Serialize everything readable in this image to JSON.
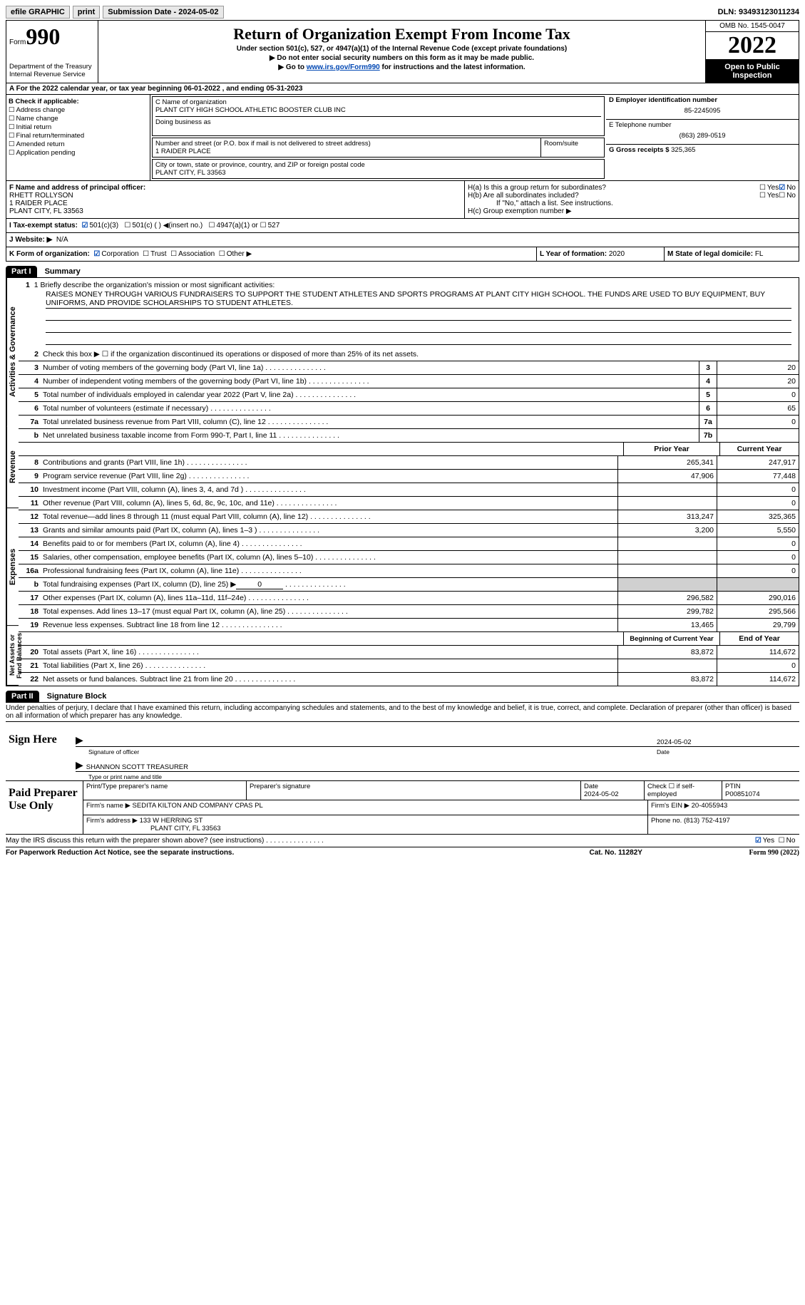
{
  "topbar": {
    "efile": "efile GRAPHIC",
    "print_btn": "print",
    "submission_label": "Submission Date - 2024-05-02",
    "dln_label": "DLN: 93493123011234"
  },
  "header": {
    "form_prefix": "Form",
    "form_number": "990",
    "dept": "Department of the Treasury\nInternal Revenue Service",
    "title": "Return of Organization Exempt From Income Tax",
    "sub1": "Under section 501(c), 527, or 4947(a)(1) of the Internal Revenue Code (except private foundations)",
    "sub2": "▶ Do not enter social security numbers on this form as it may be made public.",
    "sub3_pre": "▶ Go to ",
    "sub3_link": "www.irs.gov/Form990",
    "sub3_post": " for instructions and the latest information.",
    "omb": "OMB No. 1545-0047",
    "year": "2022",
    "open": "Open to Public Inspection"
  },
  "section_a": {
    "text": "A For the 2022 calendar year, or tax year beginning 06-01-2022   , and ending 05-31-2023"
  },
  "col_b": {
    "label": "B Check if applicable:",
    "items": [
      "Address change",
      "Name change",
      "Initial return",
      "Final return/terminated",
      "Amended return",
      "Application pending"
    ]
  },
  "col_c": {
    "name_label": "C Name of organization",
    "org_name": "PLANT CITY HIGH SCHOOL ATHLETIC BOOSTER CLUB INC",
    "dba_label": "Doing business as",
    "addr_label": "Number and street (or P.O. box if mail is not delivered to street address)",
    "addr": "1 RAIDER PLACE",
    "room_label": "Room/suite",
    "city_label": "City or town, state or province, country, and ZIP or foreign postal code",
    "city": "PLANT CITY, FL  33563"
  },
  "col_d": {
    "ein_label": "D Employer identification number",
    "ein": "85-2245095",
    "phone_label": "E Telephone number",
    "phone": "(863) 289-0519",
    "gross_label": "G Gross receipts $",
    "gross": "325,365"
  },
  "section_f": {
    "label": "F  Name and address of principal officer:",
    "name": "RHETT ROLLYSON",
    "addr1": "1 RAIDER PLACE",
    "addr2": "PLANT CITY, FL  33563"
  },
  "section_h": {
    "ha": "H(a)  Is this a group return for subordinates?",
    "hb": "H(b)  Are all subordinates included?",
    "hb_note": "If \"No,\" attach a list. See instructions.",
    "hc": "H(c)  Group exemption number ▶",
    "yes": "Yes",
    "no": "No"
  },
  "section_i": {
    "label": "I   Tax-exempt status:",
    "opts": [
      "501(c)(3)",
      "501(c) (  ) ◀(insert no.)",
      "4947(a)(1) or",
      "527"
    ]
  },
  "section_j": {
    "label": "J   Website: ▶",
    "val": "N/A"
  },
  "section_k": {
    "label": "K Form of organization:",
    "opts": [
      "Corporation",
      "Trust",
      "Association",
      "Other ▶"
    ]
  },
  "section_l": {
    "label": "L Year of formation:",
    "val": "2020"
  },
  "section_m": {
    "label": "M State of legal domicile:",
    "val": "FL"
  },
  "part1": {
    "header": "Part I",
    "title": "Summary",
    "side_labels": [
      "Activities & Governance",
      "Revenue",
      "Expenses",
      "Net Assets or Fund Balances"
    ],
    "line1_label": "1   Briefly describe the organization's mission or most significant activities:",
    "mission": "RAISES MONEY THROUGH VARIOUS FUNDRAISERS TO SUPPORT THE STUDENT ATHLETES AND SPORTS PROGRAMS AT PLANT CITY HIGH SCHOOL. THE FUNDS ARE USED TO BUY EQUIPMENT, BUY UNIFORMS, AND PROVIDE SCHOLARSHIPS TO STUDENT ATHLETES.",
    "line2": "Check this box ▶ ☐  if the organization discontinued its operations or disposed of more than 25% of its net assets.",
    "lines_gov": [
      {
        "n": "3",
        "t": "Number of voting members of the governing body (Part VI, line 1a)",
        "box": "3",
        "v": "20"
      },
      {
        "n": "4",
        "t": "Number of independent voting members of the governing body (Part VI, line 1b)",
        "box": "4",
        "v": "20"
      },
      {
        "n": "5",
        "t": "Total number of individuals employed in calendar year 2022 (Part V, line 2a)",
        "box": "5",
        "v": "0"
      },
      {
        "n": "6",
        "t": "Total number of volunteers (estimate if necessary)",
        "box": "6",
        "v": "65"
      },
      {
        "n": "7a",
        "t": "Total unrelated business revenue from Part VIII, column (C), line 12",
        "box": "7a",
        "v": "0"
      },
      {
        "n": "b",
        "t": "Net unrelated business taxable income from Form 990-T, Part I, line 11",
        "box": "7b",
        "v": ""
      }
    ],
    "col_prior": "Prior Year",
    "col_current": "Current Year",
    "lines_rev": [
      {
        "n": "8",
        "t": "Contributions and grants (Part VIII, line 1h)",
        "p": "265,341",
        "c": "247,917"
      },
      {
        "n": "9",
        "t": "Program service revenue (Part VIII, line 2g)",
        "p": "47,906",
        "c": "77,448"
      },
      {
        "n": "10",
        "t": "Investment income (Part VIII, column (A), lines 3, 4, and 7d )",
        "p": "",
        "c": "0"
      },
      {
        "n": "11",
        "t": "Other revenue (Part VIII, column (A), lines 5, 6d, 8c, 9c, 10c, and 11e)",
        "p": "",
        "c": "0"
      },
      {
        "n": "12",
        "t": "Total revenue—add lines 8 through 11 (must equal Part VIII, column (A), line 12)",
        "p": "313,247",
        "c": "325,365"
      }
    ],
    "lines_exp": [
      {
        "n": "13",
        "t": "Grants and similar amounts paid (Part IX, column (A), lines 1–3 )",
        "p": "3,200",
        "c": "5,550"
      },
      {
        "n": "14",
        "t": "Benefits paid to or for members (Part IX, column (A), line 4)",
        "p": "",
        "c": "0"
      },
      {
        "n": "15",
        "t": "Salaries, other compensation, employee benefits (Part IX, column (A), lines 5–10)",
        "p": "",
        "c": "0"
      },
      {
        "n": "16a",
        "t": "Professional fundraising fees (Part IX, column (A), line 11e)",
        "p": "",
        "c": "0"
      },
      {
        "n": "b",
        "t": "Total fundraising expenses (Part IX, column (D), line 25) ▶",
        "p": "shade",
        "c": "shade",
        "inline": "0"
      },
      {
        "n": "17",
        "t": "Other expenses (Part IX, column (A), lines 11a–11d, 11f–24e)",
        "p": "296,582",
        "c": "290,016"
      },
      {
        "n": "18",
        "t": "Total expenses. Add lines 13–17 (must equal Part IX, column (A), line 25)",
        "p": "299,782",
        "c": "295,566"
      },
      {
        "n": "19",
        "t": "Revenue less expenses. Subtract line 18 from line 12",
        "p": "13,465",
        "c": "29,799"
      }
    ],
    "col_begin": "Beginning of Current Year",
    "col_end": "End of Year",
    "lines_net": [
      {
        "n": "20",
        "t": "Total assets (Part X, line 16)",
        "p": "83,872",
        "c": "114,672"
      },
      {
        "n": "21",
        "t": "Total liabilities (Part X, line 26)",
        "p": "",
        "c": "0"
      },
      {
        "n": "22",
        "t": "Net assets or fund balances. Subtract line 21 from line 20",
        "p": "83,872",
        "c": "114,672"
      }
    ]
  },
  "part2": {
    "header": "Part II",
    "title": "Signature Block",
    "declaration": "Under penalties of perjury, I declare that I have examined this return, including accompanying schedules and statements, and to the best of my knowledge and belief, it is true, correct, and complete. Declaration of preparer (other than officer) is based on all information of which preparer has any knowledge.",
    "sign_here": "Sign Here",
    "sig_officer": "Signature of officer",
    "sig_date": "Date",
    "date_val": "2024-05-02",
    "name_title": "SHANNON SCOTT TREASURER",
    "name_title_label": "Type or print name and title",
    "paid_prep": "Paid Preparer Use Only",
    "prep_name_label": "Print/Type preparer's name",
    "prep_sig_label": "Preparer's signature",
    "prep_date_label": "Date",
    "prep_date": "2024-05-02",
    "self_emp_label": "Check ☐ if self-employed",
    "ptin_label": "PTIN",
    "ptin": "P00851074",
    "firm_name_label": "Firm's name    ▶",
    "firm_name": "SEDITA KILTON AND COMPANY CPAS PL",
    "firm_ein_label": "Firm's EIN ▶",
    "firm_ein": "20-4055943",
    "firm_addr_label": "Firm's address ▶",
    "firm_addr1": "133 W HERRING ST",
    "firm_addr2": "PLANT CITY, FL  33563",
    "firm_phone_label": "Phone no.",
    "firm_phone": "(813) 752-4197",
    "discuss": "May the IRS discuss this return with the preparer shown above? (see instructions)"
  },
  "footer": {
    "left": "For Paperwork Reduction Act Notice, see the separate instructions.",
    "mid": "Cat. No. 11282Y",
    "right": "Form 990 (2022)"
  }
}
